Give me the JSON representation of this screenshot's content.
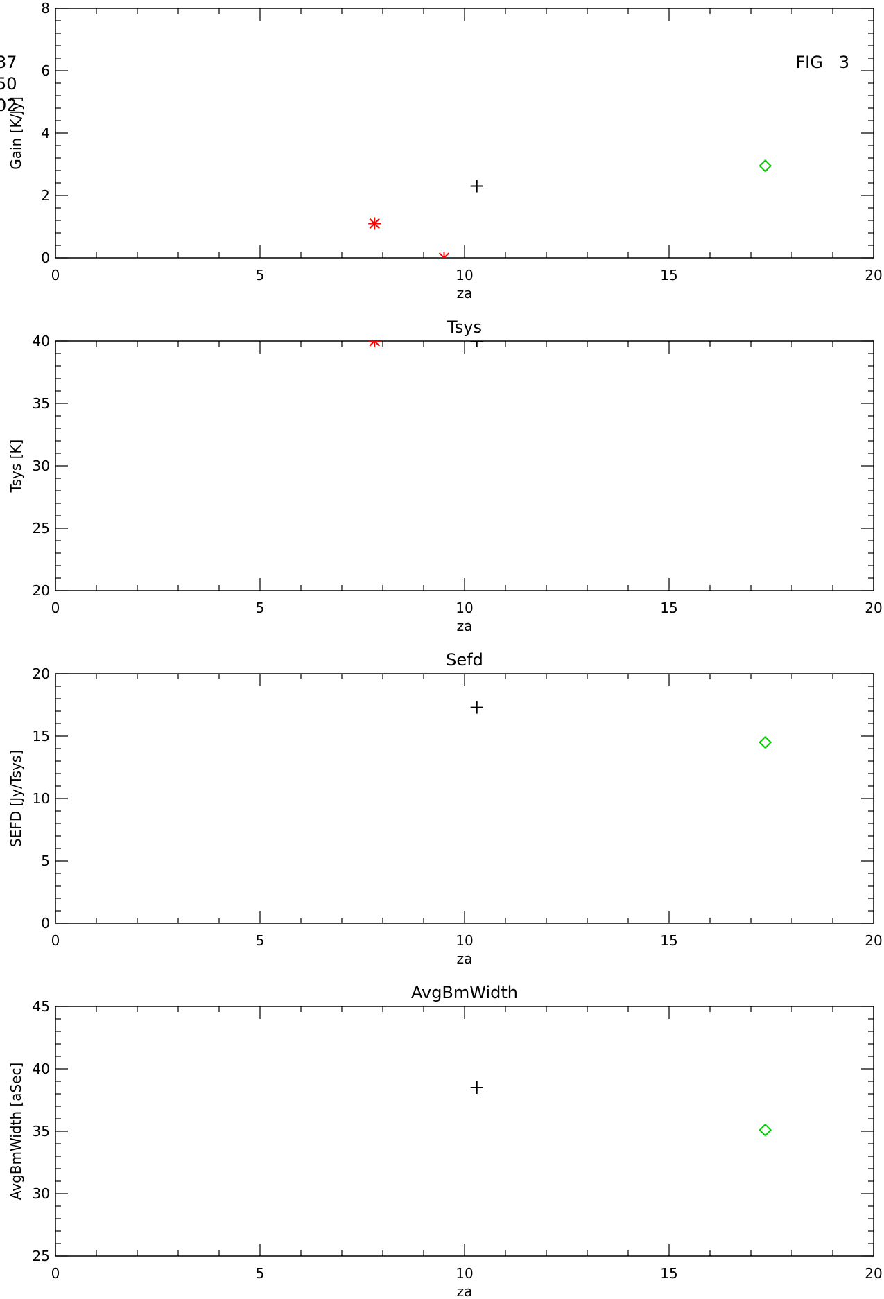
{
  "figure_label": "FIG   3",
  "legend": [
    {
      "text": "37",
      "color": "#000000"
    },
    {
      "text": "50",
      "color": "#ff0000"
    },
    {
      "text": "02",
      "color": "#00cc00"
    }
  ],
  "chart_data": [
    {
      "type": "scatter",
      "title": "",
      "xlabel": "za",
      "ylabel": "Gain [K/Jy]",
      "xlim": [
        0,
        20
      ],
      "ylim": [
        0,
        8
      ],
      "x_ticks": [
        "0",
        "5",
        "10",
        "15",
        "20"
      ],
      "y_ticks": [
        "0",
        "2",
        "4",
        "6",
        "8"
      ],
      "series": [
        {
          "color": "#000000",
          "marker": "plus",
          "points": [
            {
              "x": 10.3,
              "y": 2.3
            }
          ]
        },
        {
          "color": "#ff0000",
          "marker": "asterisk",
          "points": [
            {
              "x": 7.8,
              "y": 1.1
            },
            {
              "x": 9.5,
              "y": 0.0
            }
          ]
        },
        {
          "color": "#00cc00",
          "marker": "diamond",
          "points": [
            {
              "x": 17.35,
              "y": 2.95
            }
          ]
        }
      ]
    },
    {
      "type": "scatter",
      "title": "Tsys",
      "xlabel": "za",
      "ylabel": "Tsys [K]",
      "xlim": [
        0,
        20
      ],
      "ylim": [
        20,
        40
      ],
      "x_ticks": [
        "0",
        "5",
        "10",
        "15",
        "20"
      ],
      "y_ticks": [
        "20",
        "25",
        "30",
        "35",
        "40"
      ],
      "series": [
        {
          "color": "#000000",
          "marker": "plus",
          "points": [
            {
              "x": 10.3,
              "y": 40.0
            }
          ]
        },
        {
          "color": "#ff0000",
          "marker": "asterisk",
          "points": [
            {
              "x": 7.8,
              "y": 40.0
            }
          ]
        }
      ]
    },
    {
      "type": "scatter",
      "title": "Sefd",
      "xlabel": "za",
      "ylabel": "SEFD [Jy/Tsys]",
      "xlim": [
        0,
        20
      ],
      "ylim": [
        0,
        20
      ],
      "x_ticks": [
        "0",
        "5",
        "10",
        "15",
        "20"
      ],
      "y_ticks": [
        "0",
        "5",
        "10",
        "15",
        "20"
      ],
      "series": [
        {
          "color": "#000000",
          "marker": "plus",
          "points": [
            {
              "x": 10.3,
              "y": 17.3
            }
          ]
        },
        {
          "color": "#00cc00",
          "marker": "diamond",
          "points": [
            {
              "x": 17.35,
              "y": 14.5
            }
          ]
        }
      ]
    },
    {
      "type": "scatter",
      "title": "AvgBmWidth",
      "xlabel": "za",
      "ylabel": "AvgBmWidth [aSec]",
      "xlim": [
        0,
        20
      ],
      "ylim": [
        25,
        45
      ],
      "x_ticks": [
        "0",
        "5",
        "10",
        "15",
        "20"
      ],
      "y_ticks": [
        "25",
        "30",
        "35",
        "40",
        "45"
      ],
      "series": [
        {
          "color": "#000000",
          "marker": "plus",
          "points": [
            {
              "x": 10.3,
              "y": 38.5
            }
          ]
        },
        {
          "color": "#00cc00",
          "marker": "diamond",
          "points": [
            {
              "x": 17.35,
              "y": 35.1
            }
          ]
        }
      ]
    }
  ]
}
